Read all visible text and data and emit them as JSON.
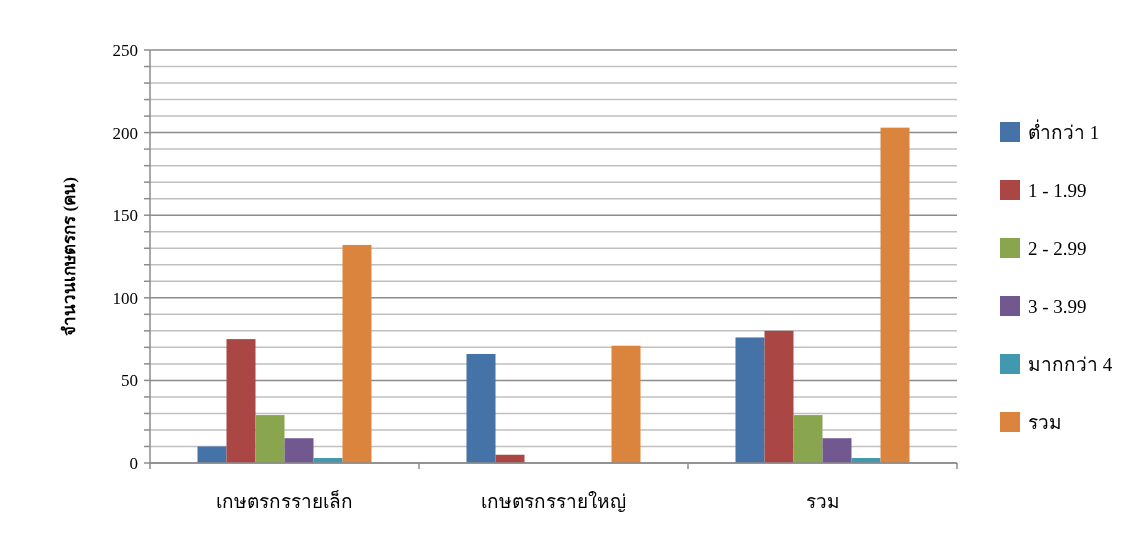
{
  "chart_data": {
    "type": "bar",
    "ylabel": "จำนวนเกษตรกร (คน)",
    "categories": [
      "เกษตรกรรายเล็ก",
      "เกษตรกรรายใหญ่",
      "รวม"
    ],
    "series": [
      {
        "name": "ต่ำกว่า 1",
        "color": "#4572a7",
        "values": [
          10,
          66,
          76
        ]
      },
      {
        "name": "1 - 1.99",
        "color": "#aa4643",
        "values": [
          75,
          5,
          80
        ]
      },
      {
        "name": "2 - 2.99",
        "color": "#89a54e",
        "values": [
          29,
          0,
          29
        ]
      },
      {
        "name": "3 - 3.99",
        "color": "#71588f",
        "values": [
          15,
          0,
          15
        ]
      },
      {
        "name": "มากกว่า 4",
        "color": "#4198af",
        "values": [
          3,
          0,
          3
        ]
      },
      {
        "name": "รวม",
        "color": "#db843d",
        "values": [
          132,
          71,
          203
        ]
      }
    ],
    "ylim": [
      0,
      250
    ],
    "yticks": [
      0,
      {
        "value": 10,
        "label": null
      },
      {
        "value": 20,
        "label": null
      },
      {
        "value": 30,
        "label": null
      },
      {
        "value": 40,
        "label": null
      },
      50,
      {
        "value": 60,
        "label": null
      },
      {
        "value": 70,
        "label": null
      },
      {
        "value": 80,
        "label": null
      },
      {
        "value": 90,
        "label": null
      },
      100,
      {
        "value": 110,
        "label": null
      },
      {
        "value": 120,
        "label": null
      },
      {
        "value": 130,
        "label": null
      },
      {
        "value": 140,
        "label": null
      },
      150,
      {
        "value": 160,
        "label": null
      },
      {
        "value": 170,
        "label": null
      },
      {
        "value": 180,
        "label": null
      },
      {
        "value": 190,
        "label": null
      },
      200,
      {
        "value": 210,
        "label": null
      },
      {
        "value": 220,
        "label": null
      },
      {
        "value": 230,
        "label": null
      },
      {
        "value": 240,
        "label": null
      },
      250
    ],
    "grid": "y",
    "legend": "right"
  }
}
